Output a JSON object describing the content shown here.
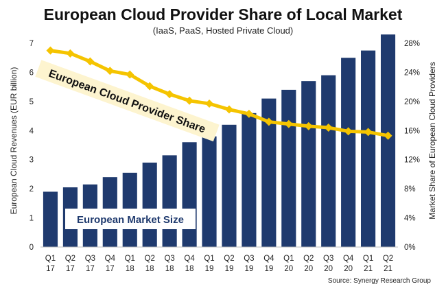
{
  "chart_data": {
    "type": "bar",
    "title": "European Cloud Provider Share of Local Market",
    "subtitle": "(IaaS, PaaS, Hosted Private Cloud)",
    "categories": [
      [
        "Q1",
        "17"
      ],
      [
        "Q2",
        "17"
      ],
      [
        "Q3",
        "17"
      ],
      [
        "Q4",
        "17"
      ],
      [
        "Q1",
        "18"
      ],
      [
        "Q2",
        "18"
      ],
      [
        "Q3",
        "18"
      ],
      [
        "Q4",
        "18"
      ],
      [
        "Q1",
        "19"
      ],
      [
        "Q2",
        "19"
      ],
      [
        "Q3",
        "19"
      ],
      [
        "Q4",
        "19"
      ],
      [
        "Q1",
        "20"
      ],
      [
        "Q2",
        "20"
      ],
      [
        "Q3",
        "20"
      ],
      [
        "Q4",
        "20"
      ],
      [
        "Q1",
        "21"
      ],
      [
        "Q2",
        "21"
      ]
    ],
    "series": [
      {
        "name": "European Market Size",
        "type": "bar",
        "axis": "left",
        "color": "#1f3a6e",
        "values": [
          1.9,
          2.05,
          2.15,
          2.4,
          2.55,
          2.9,
          3.15,
          3.6,
          3.8,
          4.2,
          4.6,
          5.1,
          5.4,
          5.7,
          5.9,
          6.5,
          6.75,
          7.3
        ]
      },
      {
        "name": "European Cloud Provider Share",
        "type": "line",
        "axis": "right",
        "color": "#f5c400",
        "values": [
          27.0,
          26.6,
          25.5,
          24.2,
          23.7,
          22.1,
          21.0,
          20.1,
          19.7,
          18.9,
          18.3,
          17.2,
          16.9,
          16.6,
          16.4,
          15.9,
          15.8,
          15.3
        ]
      }
    ],
    "ylabel": "European Cloud Revenues (EUR billion)",
    "ylim": [
      0,
      7
    ],
    "y_ticks": [
      "0",
      "1",
      "2",
      "3",
      "4",
      "5",
      "6",
      "7"
    ],
    "y2label": "Market Share of European Cloud Providers",
    "y2lim": [
      0,
      28
    ],
    "y2_ticks": [
      "0%",
      "4%",
      "8%",
      "12%",
      "16%",
      "20%",
      "24%",
      "28%"
    ],
    "annotations": {
      "share_label": "European Cloud Provider Share",
      "market_label": "European Market Size"
    },
    "source": "Source: Synergy Research Group",
    "grid": false,
    "legend": "none"
  }
}
